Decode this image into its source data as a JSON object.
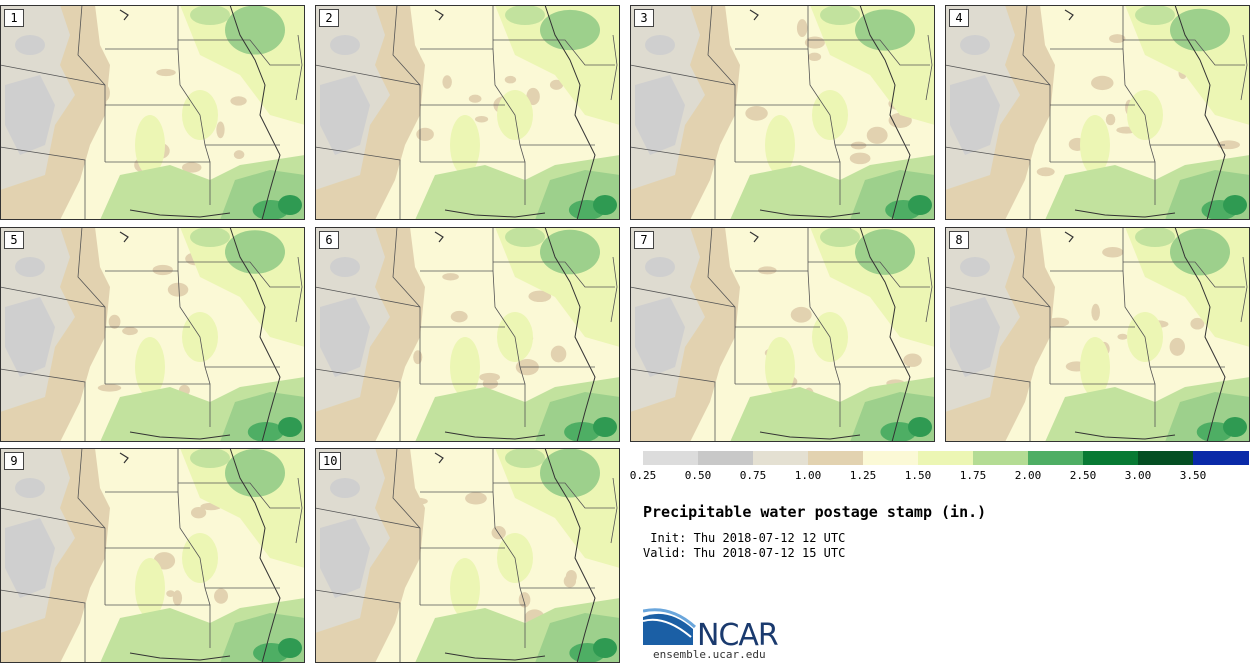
{
  "title": "Precipitable water postage stamp (in.)",
  "init": {
    "label": " Init:",
    "value": "Thu 2018-07-12 12 UTC"
  },
  "valid": {
    "label": "Valid:",
    "value": "Thu 2018-07-12 15 UTC"
  },
  "members": [
    "1",
    "2",
    "3",
    "4",
    "5",
    "6",
    "7",
    "8",
    "9",
    "10"
  ],
  "colorbar": {
    "ticks": [
      "0.25",
      "0.50",
      "0.75",
      "1.00",
      "1.25",
      "1.50",
      "1.75",
      "2.00",
      "2.50",
      "3.00",
      "3.50"
    ],
    "colors": [
      "#dcdcdc",
      "#c8c8c8",
      "#e4e0d2",
      "#e2d2b0",
      "#fbf9d6",
      "#ecf6b4",
      "#b4dc94",
      "#4eae64",
      "#087a34",
      "#044e22",
      "#0a2aa8"
    ]
  },
  "logo": {
    "name": "NCAR",
    "site": "ensemble.ucar.edu"
  }
}
